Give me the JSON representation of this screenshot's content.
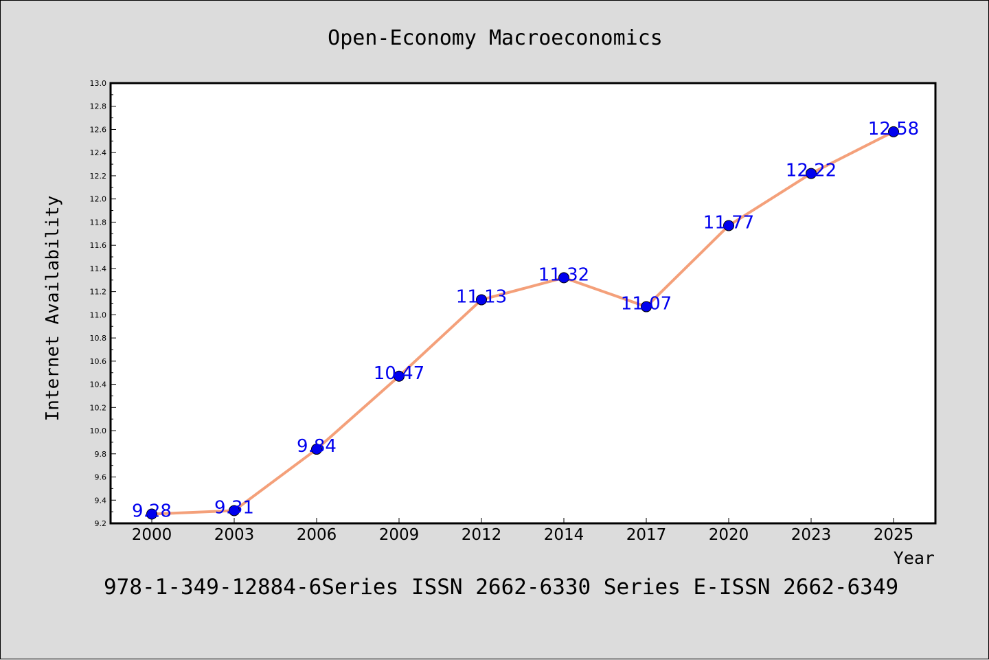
{
  "chart_data": {
    "type": "line",
    "title": "Open-Economy Macroeconomics",
    "xlabel": "Year",
    "ylabel": "Internet Availability",
    "categories": [
      "2000",
      "2003",
      "2006",
      "2009",
      "2012",
      "2014",
      "2017",
      "2020",
      "2023",
      "2025"
    ],
    "series": [
      {
        "values": [
          9.28,
          9.31,
          9.84,
          10.47,
          11.13,
          11.32,
          11.07,
          11.77,
          12.22,
          12.58
        ],
        "line_color": "#f4a07a",
        "marker_color": "#0000ee"
      }
    ],
    "data_labels": [
      "9.28",
      "9.31",
      "9.84",
      "10.47",
      "11.13",
      "11.32",
      "11.07",
      "11.77",
      "12.22",
      "12.58"
    ],
    "ylim": [
      9.2,
      13.0
    ],
    "yticks": [
      "9.2",
      "9.4",
      "9.6",
      "9.8",
      "10.0",
      "10.2",
      "10.4",
      "10.6",
      "10.8",
      "11.0",
      "11.2",
      "11.4",
      "11.6",
      "11.8",
      "12.0",
      "12.2",
      "12.4",
      "12.6",
      "12.8",
      "13.0"
    ],
    "label_color": "#0000ee",
    "grid": false,
    "legend": "none"
  },
  "footer": {
    "text": "978-1-349-12884-6Series ISSN 2662-6330 Series E-ISSN 2662-6349"
  }
}
